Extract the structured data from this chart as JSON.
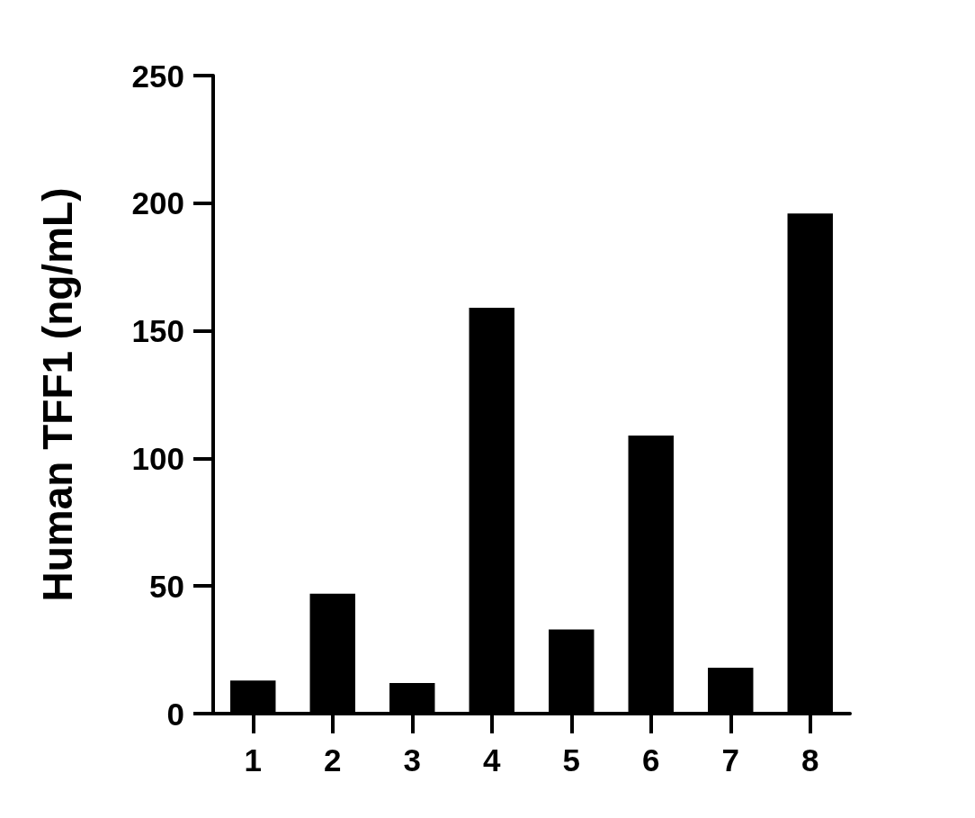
{
  "chart_data": {
    "type": "bar",
    "ylabel": "Human TFF1 (ng/mL)",
    "categories": [
      "1",
      "2",
      "3",
      "4",
      "5",
      "6",
      "7",
      "8"
    ],
    "values": [
      13,
      47,
      12,
      159,
      33,
      109,
      18,
      196
    ],
    "color": "#000000",
    "ylim": [
      0,
      250
    ],
    "yticks": [
      0,
      50,
      100,
      150,
      200,
      250
    ],
    "grid": false
  }
}
